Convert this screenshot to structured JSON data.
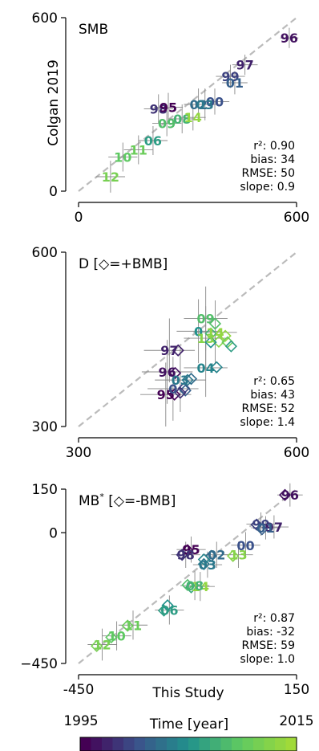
{
  "shared_axis_label": {
    "y": "Colgan 2019",
    "x": "This Study"
  },
  "colorbar": {
    "label": "Time [year]",
    "min_label": "1995",
    "max_label": "2015",
    "range": [
      1995,
      2015
    ]
  },
  "chart_data": [
    {
      "type": "scatter",
      "panel_label": "SMB",
      "xlim": [
        0,
        600
      ],
      "ylim": [
        0,
        600
      ],
      "xticks": [
        "0",
        "600"
      ],
      "yticks": [
        "0",
        "600"
      ],
      "one_to_one_line": true,
      "stats": {
        "r2": "r²: 0.90",
        "bias": "bias: 34",
        "rmse": "RMSE: 50",
        "slope": "slope: 0.9"
      },
      "points": [
        {
          "label": "96",
          "year": 1996,
          "x": 580,
          "y": 530,
          "xerr": 25,
          "yerr": 35
        },
        {
          "label": "97",
          "year": 1997,
          "x": 458,
          "y": 437,
          "xerr": 35,
          "yerr": 35
        },
        {
          "label": "99",
          "year": 1999,
          "x": 418,
          "y": 397,
          "xerr": 40,
          "yerr": 40
        },
        {
          "label": "01",
          "year": 2001,
          "x": 430,
          "y": 375,
          "xerr": 35,
          "yerr": 40
        },
        {
          "label": "98",
          "year": 1998,
          "x": 220,
          "y": 285,
          "xerr": 40,
          "yerr": 50
        },
        {
          "label": "95",
          "year": 1995,
          "x": 247,
          "y": 290,
          "xerr": 40,
          "yerr": 50
        },
        {
          "label": "00",
          "year": 2000,
          "x": 375,
          "y": 310,
          "xerr": 40,
          "yerr": 45
        },
        {
          "label": "02",
          "year": 2002,
          "x": 330,
          "y": 300,
          "xerr": 40,
          "yerr": 55
        },
        {
          "label": "03",
          "year": 2003,
          "x": 348,
          "y": 300,
          "xerr": 40,
          "yerr": 55
        },
        {
          "label": "09",
          "year": 2009,
          "x": 243,
          "y": 235,
          "xerr": 40,
          "yerr": 45
        },
        {
          "label": "08",
          "year": 2008,
          "x": 285,
          "y": 250,
          "xerr": 35,
          "yerr": 50
        },
        {
          "label": "14",
          "year": 2014,
          "x": 315,
          "y": 255,
          "xerr": 35,
          "yerr": 45
        },
        {
          "label": "06",
          "year": 2006,
          "x": 205,
          "y": 175,
          "xerr": 40,
          "yerr": 50
        },
        {
          "label": "11",
          "year": 2011,
          "x": 165,
          "y": 143,
          "xerr": 40,
          "yerr": 50
        },
        {
          "label": "10",
          "year": 2010,
          "x": 122,
          "y": 118,
          "xerr": 40,
          "yerr": 50
        },
        {
          "label": "12",
          "year": 2012,
          "x": 88,
          "y": 50,
          "xerr": 40,
          "yerr": 55
        }
      ]
    },
    {
      "type": "scatter",
      "panel_label": "D [◇=+BMB]",
      "xlim": [
        300,
        600
      ],
      "ylim": [
        300,
        600
      ],
      "xticks": [
        "300",
        "600"
      ],
      "yticks": [
        "300",
        "600"
      ],
      "one_to_one_line": true,
      "stats": {
        "r2": "r²: 0.65",
        "bias": "bias: 43",
        "rmse": "RMSE: 52",
        "slope": "slope: 1.4"
      },
      "points": [
        {
          "label": "09",
          "year": 2009,
          "x": 475,
          "y": 486,
          "xerr": 30,
          "yerr": 55
        },
        {
          "label": "0",
          "year": 2005,
          "x": 465,
          "y": 464,
          "xerr": 30,
          "yerr": 55
        },
        {
          "label": "14",
          "year": 2014,
          "x": 488,
          "y": 462,
          "xerr": 30,
          "yerr": 55
        },
        {
          "label": "13",
          "year": 2013,
          "x": 475,
          "y": 452,
          "xerr": 30,
          "yerr": 55
        },
        {
          "label": "97",
          "year": 1997,
          "x": 425,
          "y": 431,
          "xerr": 35,
          "yerr": 55
        },
        {
          "label": "04",
          "year": 2004,
          "x": 475,
          "y": 401,
          "xerr": 30,
          "yerr": 50
        },
        {
          "label": "96",
          "year": 1996,
          "x": 422,
          "y": 394,
          "xerr": 35,
          "yerr": 55
        },
        {
          "label": "03",
          "year": 2003,
          "x": 440,
          "y": 380,
          "xerr": 35,
          "yerr": 55
        },
        {
          "label": "95",
          "year": 1995,
          "x": 420,
          "y": 355,
          "xerr": 35,
          "yerr": 55
        },
        {
          "label": "0",
          "year": 2000,
          "x": 430,
          "y": 365,
          "xerr": 35,
          "yerr": 55
        }
      ],
      "bmb_markers": [
        {
          "year": 2009,
          "x": 488,
          "y": 477
        },
        {
          "year": 2014,
          "x": 502,
          "y": 456
        },
        {
          "year": 2013,
          "x": 493,
          "y": 446
        },
        {
          "year": 2011,
          "x": 505,
          "y": 445
        },
        {
          "year": 2008,
          "x": 482,
          "y": 460
        },
        {
          "year": 2006,
          "x": 510,
          "y": 438
        },
        {
          "year": 2005,
          "x": 482,
          "y": 445
        },
        {
          "year": 1997,
          "x": 437,
          "y": 431
        },
        {
          "year": 2004,
          "x": 490,
          "y": 402
        },
        {
          "year": 1996,
          "x": 433,
          "y": 392
        },
        {
          "year": 2002,
          "x": 455,
          "y": 382
        },
        {
          "year": 1999,
          "x": 445,
          "y": 366
        },
        {
          "year": 2001,
          "x": 447,
          "y": 362
        },
        {
          "year": 1995,
          "x": 432,
          "y": 355
        },
        {
          "year": 1998,
          "x": 440,
          "y": 358
        },
        {
          "year": 2003,
          "x": 450,
          "y": 380
        }
      ]
    },
    {
      "type": "scatter",
      "panel_label": "MB",
      "panel_label_sup": "*",
      "panel_label_rest": " [◇=-BMB]",
      "xlim": [
        -450,
        150
      ],
      "ylim": [
        -450,
        150
      ],
      "xticks": [
        "-450",
        "150"
      ],
      "yticks": [
        "−450",
        "0",
        "150"
      ],
      "one_to_one_line": true,
      "stats": {
        "r2": "r²: 0.87",
        "bias": "bias: -32",
        "rmse": "RMSE: 59",
        "slope": "slope: 1.0"
      },
      "points": [
        {
          "label": "96",
          "year": 1996,
          "x": 132,
          "y": 130,
          "xerr": 35,
          "yerr": 40
        },
        {
          "label": "99",
          "year": 1999,
          "x": 52,
          "y": 30,
          "xerr": 40,
          "yerr": 40
        },
        {
          "label": "97",
          "year": 1997,
          "x": 88,
          "y": 20,
          "xerr": 40,
          "yerr": 40
        },
        {
          "label": "01",
          "year": 2001,
          "x": 65,
          "y": 17,
          "xerr": 40,
          "yerr": 40
        },
        {
          "label": "95",
          "year": 1995,
          "x": -140,
          "y": -58,
          "xerr": 40,
          "yerr": 45
        },
        {
          "label": "98",
          "year": 1998,
          "x": -155,
          "y": -76,
          "xerr": 40,
          "yerr": 45
        },
        {
          "label": "02",
          "year": 2002,
          "x": -70,
          "y": -76,
          "xerr": 40,
          "yerr": 45
        },
        {
          "label": "00",
          "year": 2000,
          "x": 10,
          "y": -43,
          "xerr": 40,
          "yerr": 45
        },
        {
          "label": "13",
          "year": 2013,
          "x": -10,
          "y": -76,
          "xerr": 40,
          "yerr": 45
        },
        {
          "label": "03",
          "year": 2003,
          "x": -95,
          "y": -110,
          "xerr": 40,
          "yerr": 45
        },
        {
          "label": "14",
          "year": 2014,
          "x": -115,
          "y": -185,
          "xerr": 40,
          "yerr": 50
        },
        {
          "label": "08",
          "year": 2008,
          "x": -130,
          "y": -182,
          "xerr": 40,
          "yerr": 50
        },
        {
          "label": "06",
          "year": 2006,
          "x": -200,
          "y": -266,
          "xerr": 40,
          "yerr": 50
        },
        {
          "label": "11",
          "year": 2011,
          "x": -300,
          "y": -318,
          "xerr": 40,
          "yerr": 50
        },
        {
          "label": "10",
          "year": 2010,
          "x": -345,
          "y": -355,
          "xerr": 40,
          "yerr": 50
        },
        {
          "label": "12",
          "year": 2012,
          "x": -385,
          "y": -385,
          "xerr": 40,
          "yerr": 55
        }
      ],
      "bmb_markers": [
        {
          "year": 1996,
          "x": 118,
          "y": 130
        },
        {
          "year": 1999,
          "x": 40,
          "y": 28
        },
        {
          "year": 2001,
          "x": 55,
          "y": 12
        },
        {
          "year": 1995,
          "x": -150,
          "y": -60
        },
        {
          "year": 1998,
          "x": -165,
          "y": -76
        },
        {
          "year": 2002,
          "x": -85,
          "y": -80
        },
        {
          "year": 2003,
          "x": -105,
          "y": -108
        },
        {
          "year": 2004,
          "x": -105,
          "y": -92
        },
        {
          "year": 2007,
          "x": -140,
          "y": -188
        },
        {
          "year": 2009,
          "x": -150,
          "y": -180
        },
        {
          "year": 2013,
          "x": -25,
          "y": -80
        },
        {
          "year": 2006,
          "x": -215,
          "y": -268
        },
        {
          "year": 2005,
          "x": -205,
          "y": -250
        },
        {
          "year": 2011,
          "x": -315,
          "y": -320
        },
        {
          "year": 2010,
          "x": -360,
          "y": -360
        },
        {
          "year": 2012,
          "x": -400,
          "y": -390
        }
      ]
    }
  ]
}
